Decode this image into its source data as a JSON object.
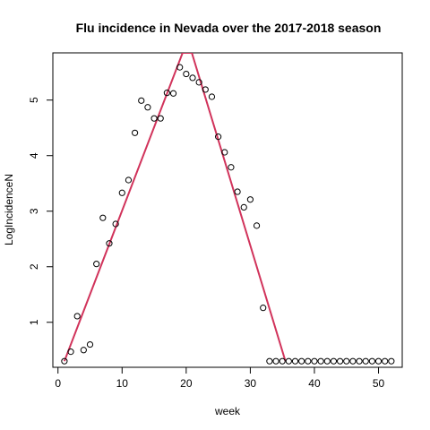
{
  "chart_data": {
    "type": "scatter",
    "title": "Flu incidence in Nevada over the 2017-2018 season",
    "xlabel": "week",
    "ylabel": "LogIncidenceN",
    "xlim": [
      -0.8,
      53.7
    ],
    "ylim": [
      0.19,
      5.85
    ],
    "xticks": [
      0,
      10,
      20,
      30,
      40,
      50
    ],
    "yticks": [
      1,
      2,
      3,
      4,
      5
    ],
    "grid": false,
    "series": [
      {
        "type": "scatter",
        "x": [
          1,
          2,
          3,
          4,
          5,
          6,
          7,
          8,
          9,
          10,
          11,
          12,
          13,
          14,
          15,
          16,
          17,
          18,
          19,
          20,
          21,
          22,
          23,
          24,
          25,
          26,
          27,
          28,
          29,
          30,
          31,
          32,
          33,
          34,
          35,
          36,
          37,
          38,
          39,
          40,
          41,
          42,
          43,
          44,
          45,
          46,
          47,
          48,
          49,
          50,
          51,
          52
        ],
        "values": [
          0.3,
          0.47,
          1.11,
          0.5,
          0.6,
          2.05,
          2.88,
          2.42,
          2.77,
          3.33,
          3.56,
          4.41,
          4.99,
          4.87,
          4.67,
          4.67,
          5.13,
          5.12,
          5.59,
          5.47,
          5.4,
          5.32,
          5.19,
          5.06,
          4.34,
          4.06,
          3.79,
          3.35,
          3.07,
          3.21,
          2.74,
          1.26,
          0.3,
          0.3,
          0.3,
          0.3,
          0.3,
          0.3,
          0.3,
          0.3,
          0.3,
          0.3,
          0.3,
          0.3,
          0.3,
          0.3,
          0.3,
          0.3,
          0.3,
          0.3,
          0.3,
          0.3
        ],
        "color": "#000000"
      },
      {
        "type": "line",
        "x": [
          1,
          19.44,
          20.88,
          35.48
        ],
        "values": [
          0.3,
          5.85,
          5.85,
          0.3
        ],
        "color": "#d1335b"
      }
    ]
  }
}
